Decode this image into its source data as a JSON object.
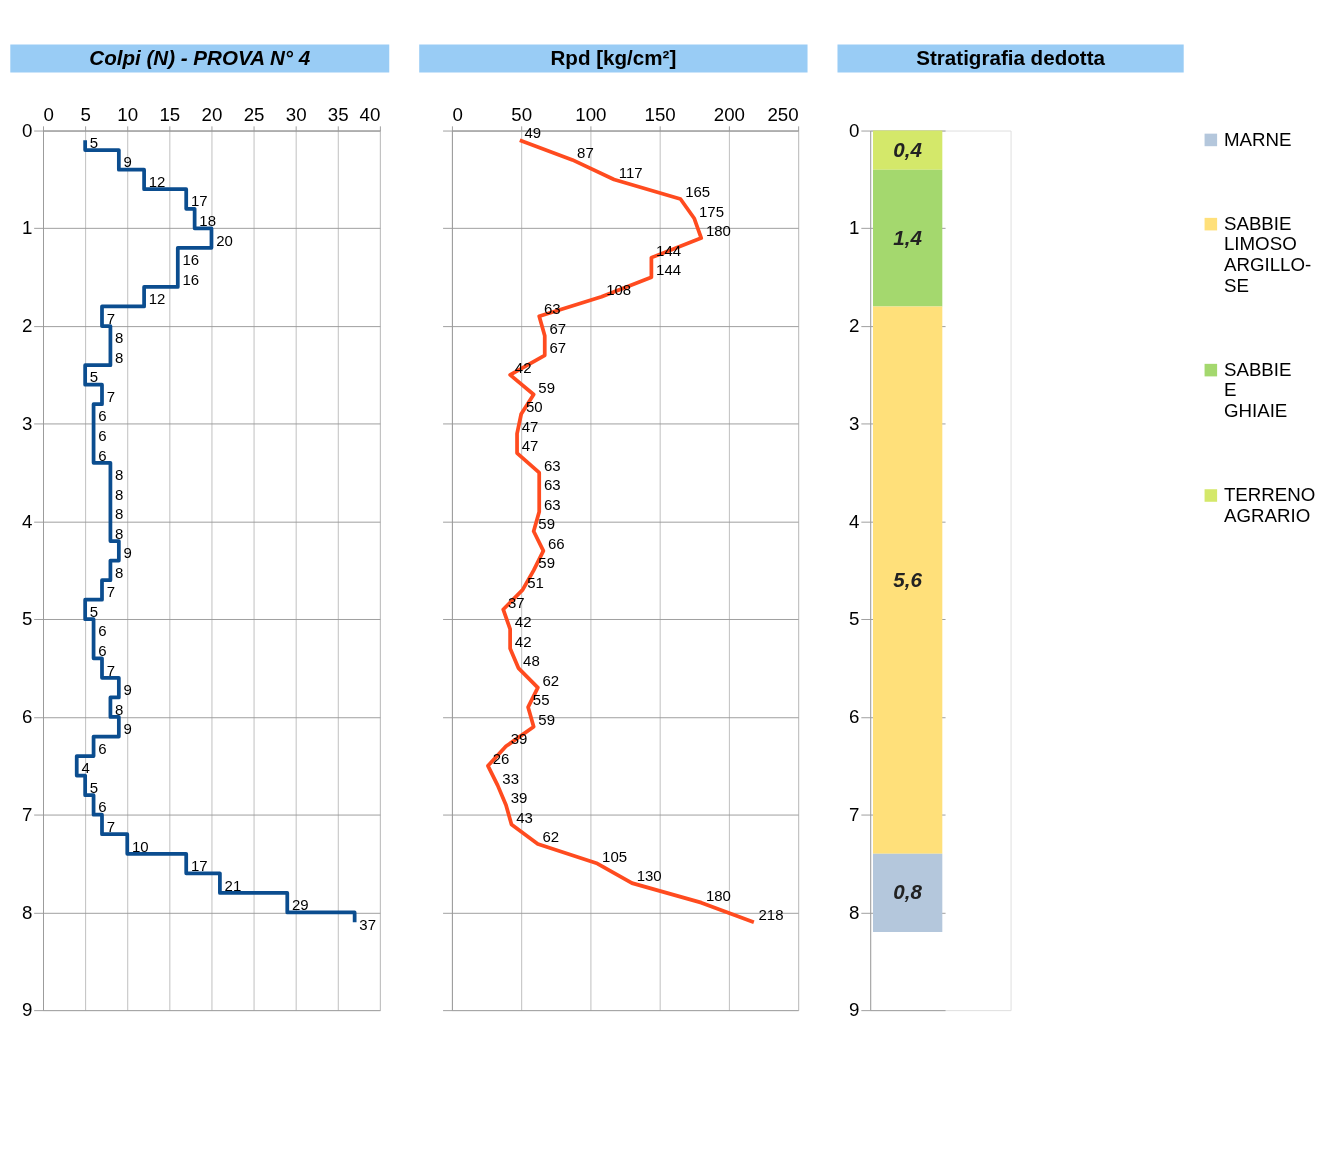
{
  "chart_data": [
    {
      "type": "step",
      "title": "Colpi (N) - PROVA N° 4",
      "orientation": "horizontal",
      "x": [
        0.1,
        0.3,
        0.5,
        0.7,
        0.9,
        1.1,
        1.3,
        1.5,
        1.7,
        1.9,
        2.1,
        2.3,
        2.5,
        2.7,
        2.9,
        3.1,
        3.3,
        3.5,
        3.7,
        3.9,
        4.1,
        4.3,
        4.5,
        4.7,
        4.9,
        5.1,
        5.3,
        5.5,
        5.7,
        5.9,
        6.1,
        6.3,
        6.5,
        6.7,
        6.9,
        7.1,
        7.3,
        7.5,
        7.7,
        7.9,
        8.1
      ],
      "values": [
        5,
        9,
        12,
        17,
        18,
        20,
        16,
        16,
        12,
        7,
        8,
        8,
        5,
        7,
        6,
        6,
        6,
        8,
        8,
        8,
        8,
        9,
        8,
        7,
        5,
        6,
        6,
        7,
        9,
        8,
        9,
        6,
        4,
        5,
        6,
        7,
        10,
        17,
        21,
        29,
        37
      ],
      "color": "#0b4d8f",
      "xlim": [
        0,
        40
      ],
      "xticks": [
        0,
        5,
        10,
        15,
        20,
        25,
        30,
        35,
        40
      ],
      "ylim": [
        9,
        0
      ],
      "yticks": [
        0,
        1,
        2,
        3,
        4,
        5,
        6,
        7,
        8,
        9
      ],
      "grid": true,
      "data_labels": true
    },
    {
      "type": "line",
      "title": "Rpd [kg/cm²]",
      "orientation": "horizontal",
      "x": [
        0.1,
        0.3,
        0.5,
        0.7,
        0.9,
        1.1,
        1.3,
        1.5,
        1.7,
        1.9,
        2.1,
        2.3,
        2.5,
        2.7,
        2.9,
        3.1,
        3.3,
        3.5,
        3.7,
        3.9,
        4.1,
        4.3,
        4.5,
        4.7,
        4.9,
        5.1,
        5.3,
        5.5,
        5.7,
        5.9,
        6.1,
        6.3,
        6.5,
        6.7,
        6.9,
        7.1,
        7.3,
        7.5,
        7.7,
        7.9,
        8.1
      ],
      "values": [
        49,
        87,
        117,
        165,
        175,
        180,
        144,
        144,
        108,
        63,
        67,
        67,
        42,
        59,
        50,
        47,
        47,
        63,
        63,
        63,
        59,
        66,
        59,
        51,
        37,
        42,
        42,
        48,
        62,
        55,
        59,
        39,
        26,
        33,
        39,
        43,
        62,
        105,
        130,
        180,
        218
      ],
      "color": "#ff4b1f",
      "xlim": [
        0,
        250
      ],
      "xticks": [
        0,
        50,
        100,
        150,
        200,
        250
      ],
      "ylim": [
        9,
        0
      ],
      "yticks": [
        0,
        1,
        2,
        3,
        4,
        5,
        6,
        7,
        8,
        9
      ],
      "grid": true,
      "data_labels": true,
      "tick_labels": "x"
    },
    {
      "type": "bar",
      "title": "Stratigrafia dedotta",
      "stacked": true,
      "categories": [
        null
      ],
      "series": [
        {
          "name": "TERRENO AGRARIO",
          "color": "#d4e86a",
          "values": [
            0.4
          ],
          "value_labels": [
            "0,4"
          ]
        },
        {
          "name": "SABBIE E GHIAIE",
          "color": "#a4d86e",
          "values": [
            1.4
          ],
          "value_labels": [
            "1,4"
          ]
        },
        {
          "name": "SABBIE LIMOSO ARGILLO-SE",
          "color": "#ffe07a",
          "values": [
            5.6
          ],
          "value_labels": [
            "5,6"
          ]
        },
        {
          "name": "MARNE",
          "color": "#b4c7dc",
          "values": [
            0.8
          ],
          "value_labels": [
            "0,8"
          ]
        }
      ],
      "ylim": [
        9,
        0
      ],
      "yticks": [
        0,
        1,
        2,
        3,
        4,
        5,
        6,
        7,
        8,
        9
      ],
      "grid": "y",
      "legend": "right",
      "tick_labels": "y"
    }
  ]
}
